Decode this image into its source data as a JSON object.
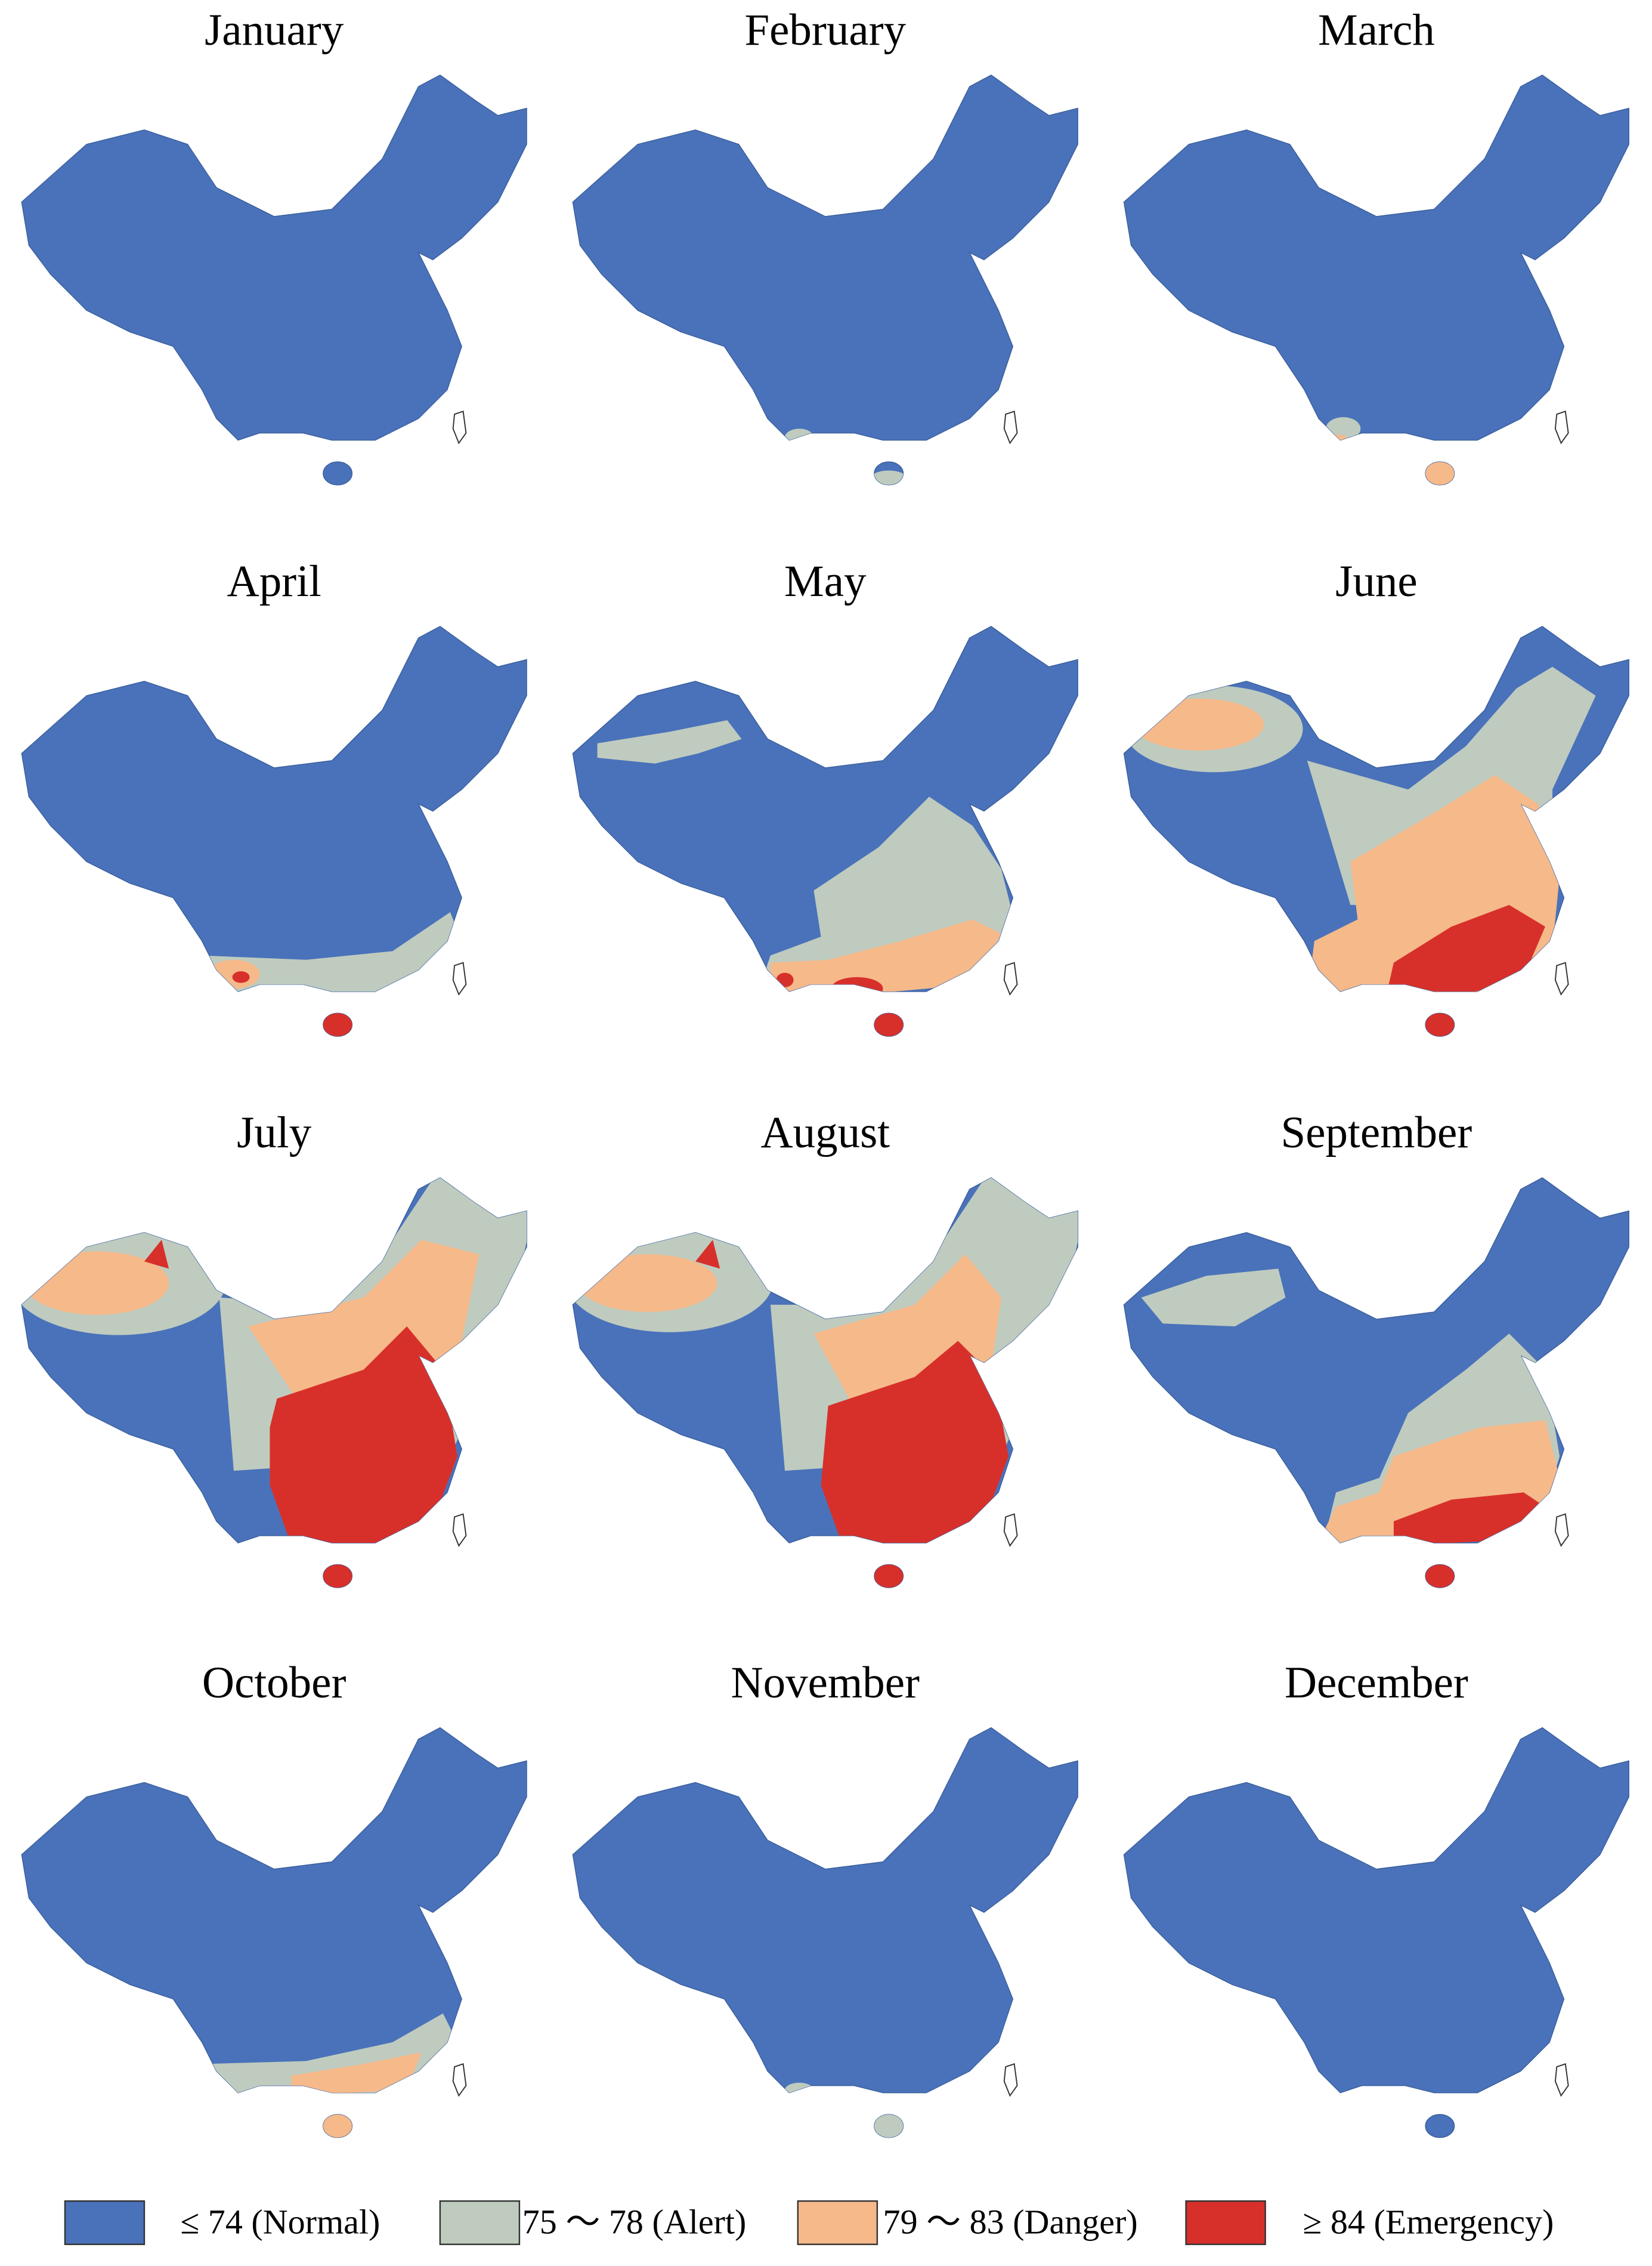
{
  "panels": [
    {
      "title": "January"
    },
    {
      "title": "February"
    },
    {
      "title": "March"
    },
    {
      "title": "April"
    },
    {
      "title": "May"
    },
    {
      "title": "June"
    },
    {
      "title": "July"
    },
    {
      "title": "August"
    },
    {
      "title": "September"
    },
    {
      "title": "October"
    },
    {
      "title": "November"
    },
    {
      "title": "December"
    }
  ],
  "legend": {
    "items": [
      {
        "label": "≤ 74 (Normal)",
        "color": "#4a72ba"
      },
      {
        "label": "75 ～ 78 (Alert)",
        "color": "#bfcbbf"
      },
      {
        "label": "79 ～ 83 (Danger)",
        "color": "#f6b98a"
      },
      {
        "label": "≥ 84 (Emergency)",
        "color": "#d7302a"
      }
    ]
  }
}
